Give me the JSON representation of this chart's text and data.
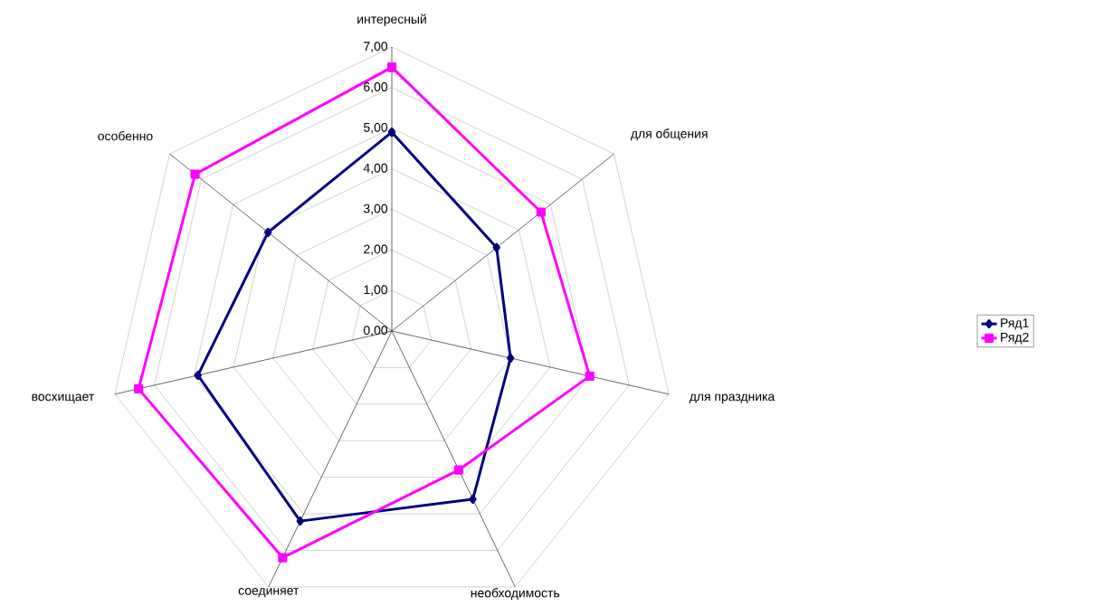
{
  "chart_data": {
    "type": "radar",
    "categories": [
      "интересный",
      "для общения",
      "для праздника",
      "необходимость",
      "соединяет",
      "восхищает",
      "особенно"
    ],
    "series": [
      {
        "name": "Ряд1",
        "color": "#000080",
        "marker": "diamond",
        "values": [
          4.9,
          3.3,
          3.0,
          4.6,
          5.2,
          4.9,
          3.9
        ]
      },
      {
        "name": "Ряд2",
        "color": "#ff00ff",
        "marker": "square",
        "values": [
          6.5,
          4.7,
          5.0,
          3.8,
          6.2,
          6.4,
          6.2
        ]
      }
    ],
    "ylim": [
      0,
      7
    ],
    "yticks": [
      {
        "value": 0,
        "label": "0,00"
      },
      {
        "value": 1,
        "label": "1,00"
      },
      {
        "value": 2,
        "label": "2,00"
      },
      {
        "value": 3,
        "label": "3,00"
      },
      {
        "value": 4,
        "label": "4,00"
      },
      {
        "value": 5,
        "label": "5,00"
      },
      {
        "value": 6,
        "label": "6,00"
      },
      {
        "value": 7,
        "label": "7,00"
      }
    ],
    "grid": true,
    "legend": "right"
  }
}
